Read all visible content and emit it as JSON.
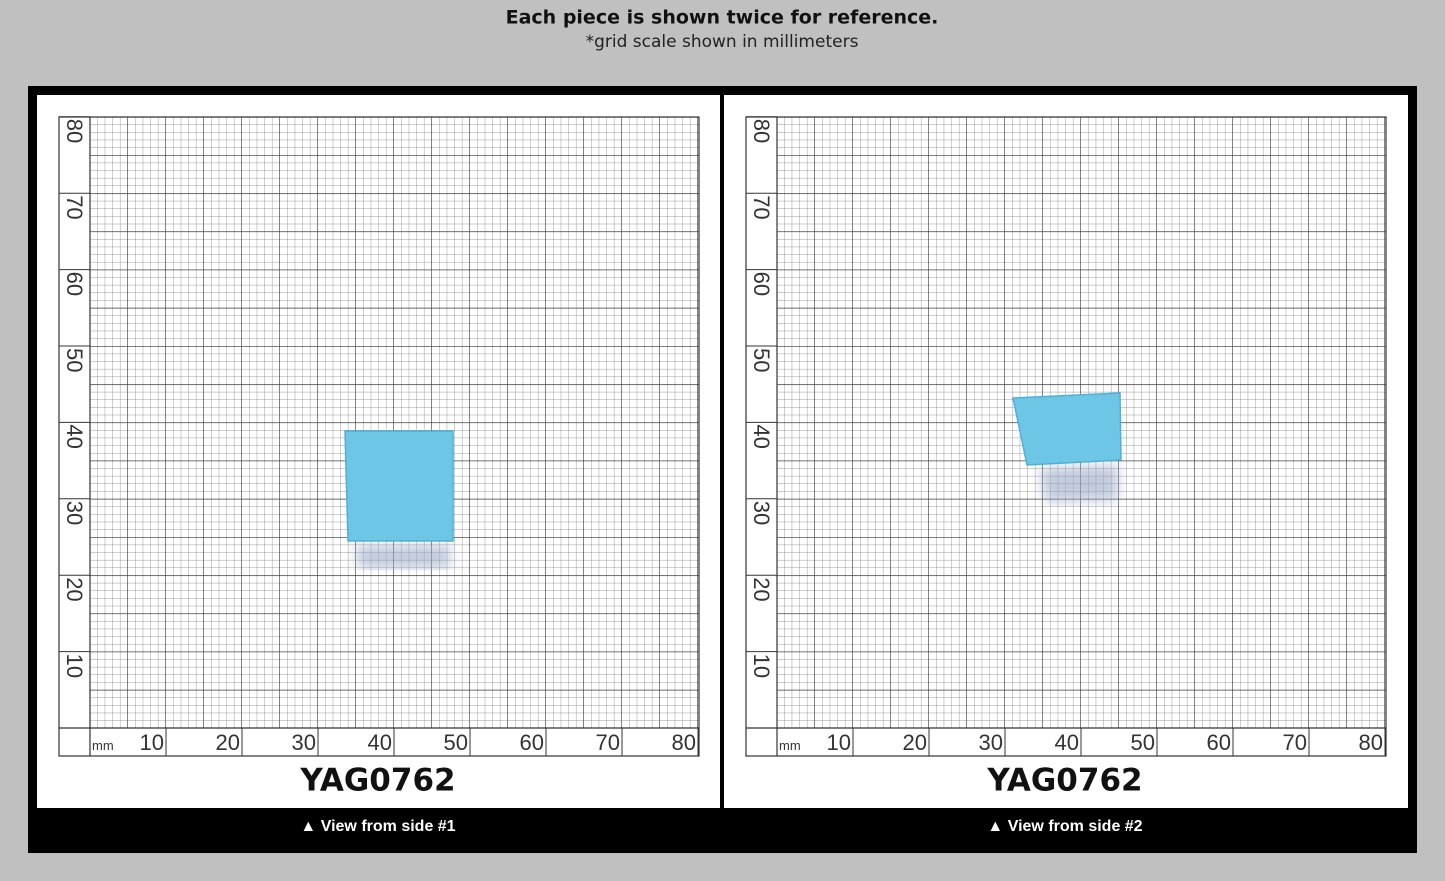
{
  "header": {
    "title": "Each piece is shown twice for reference.",
    "subtitle": "*grid scale shown in millimeters"
  },
  "panels": [
    {
      "name": "YAG0762",
      "caption": "▲ View from side #1",
      "unit": "mm",
      "x_labels": [
        "10",
        "20",
        "30",
        "40",
        "50",
        "60",
        "70",
        "80"
      ],
      "y_labels": [
        "10",
        "20",
        "30",
        "40",
        "50",
        "60",
        "70",
        "80"
      ]
    },
    {
      "name": "YAG0762",
      "caption": "▲ View from side #2",
      "unit": "mm",
      "x_labels": [
        "10",
        "20",
        "30",
        "40",
        "50",
        "60",
        "70",
        "80"
      ],
      "y_labels": [
        "10",
        "20",
        "30",
        "40",
        "50",
        "60",
        "70",
        "80"
      ]
    }
  ]
}
